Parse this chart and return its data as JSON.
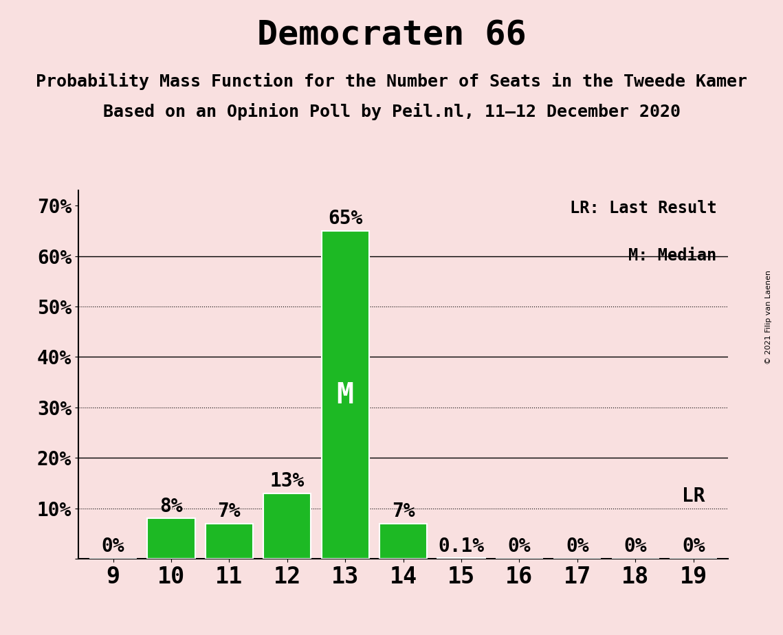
{
  "title": "Democraten 66",
  "subtitle1": "Probability Mass Function for the Number of Seats in the Tweede Kamer",
  "subtitle2": "Based on an Opinion Poll by Peil.nl, 11–12 December 2020",
  "copyright": "© 2021 Filip van Laenen",
  "categories": [
    9,
    10,
    11,
    12,
    13,
    14,
    15,
    16,
    17,
    18,
    19
  ],
  "values": [
    0,
    8,
    7,
    13,
    65,
    7,
    0.1,
    0,
    0,
    0,
    0
  ],
  "bar_color": "#1db924",
  "background_color": "#f9e0e0",
  "median_bar": 13,
  "last_result": 19,
  "yticks": [
    0,
    10,
    20,
    30,
    40,
    50,
    60,
    70
  ],
  "ylim": [
    0,
    73
  ],
  "legend_lr": "LR: Last Result",
  "legend_m": "M: Median",
  "title_fontsize": 36,
  "subtitle_fontsize": 18,
  "bar_label_fontsize": 20,
  "ytick_fontsize": 20,
  "xtick_fontsize": 24
}
